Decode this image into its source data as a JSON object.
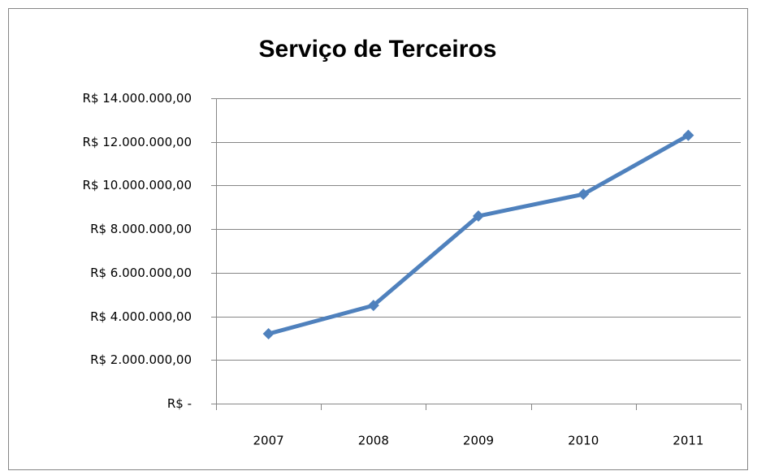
{
  "chart_data": {
    "type": "line",
    "title": "Serviço de Terceiros",
    "categories": [
      "2007",
      "2008",
      "2009",
      "2010",
      "2011"
    ],
    "values": [
      3200000,
      4500000,
      8600000,
      9600000,
      12300000
    ],
    "color": "#4f81bd",
    "ylim": [
      0,
      14000000
    ],
    "yticks": [
      {
        "value": 0,
        "label": "R$ -"
      },
      {
        "value": 2000000,
        "label": "R$ 2.000.000,00"
      },
      {
        "value": 4000000,
        "label": "R$ 4.000.000,00"
      },
      {
        "value": 6000000,
        "label": "R$ 6.000.000,00"
      },
      {
        "value": 8000000,
        "label": "R$ 8.000.000,00"
      },
      {
        "value": 10000000,
        "label": "R$ 10.000.000,00"
      },
      {
        "value": 12000000,
        "label": "R$ 12.000.000,00"
      },
      {
        "value": 14000000,
        "label": "R$ 14.000.000,00"
      }
    ],
    "grid": true
  }
}
